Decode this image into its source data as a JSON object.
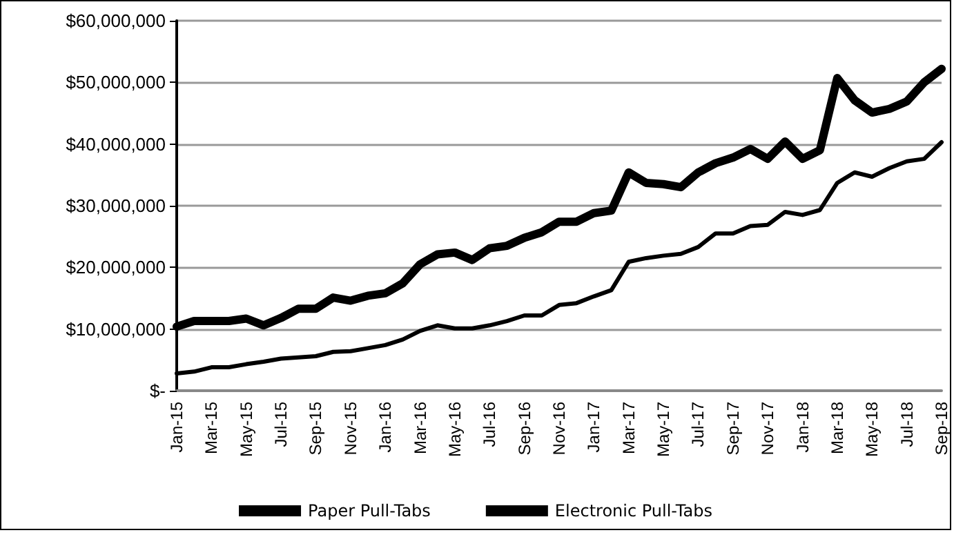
{
  "chart_data": {
    "type": "line",
    "categories": [
      "Jan-15",
      null,
      "Mar-15",
      null,
      "May-15",
      null,
      "Jul-15",
      null,
      "Sep-15",
      null,
      "Nov-15",
      null,
      "Jan-16",
      null,
      "Mar-16",
      null,
      "May-16",
      null,
      "Jul-16",
      null,
      "Sep-16",
      null,
      "Nov-16",
      null,
      "Jan-17",
      null,
      "Mar-17",
      null,
      "May-17",
      null,
      "Jul-17",
      null,
      "Sep-17",
      null,
      "Nov-17",
      null,
      "Jan-18",
      null,
      "Mar-18",
      null,
      "May-18",
      null,
      "Jul-18",
      null,
      "Sep-18"
    ],
    "series": [
      {
        "name": "Paper Pull-Tabs",
        "color": "#000000",
        "values": [
          10400000,
          11300000,
          11300000,
          11300000,
          11700000,
          10600000,
          11800000,
          13300000,
          13300000,
          15100000,
          14600000,
          15400000,
          15800000,
          17400000,
          20500000,
          22100000,
          22400000,
          21200000,
          23100000,
          23500000,
          24800000,
          25700000,
          27400000,
          27400000,
          28800000,
          29200000,
          35400000,
          33700000,
          33500000,
          33000000,
          35400000,
          36900000,
          37800000,
          39200000,
          37600000,
          40400000,
          37600000,
          39000000,
          50700000,
          47100000,
          45100000,
          45700000,
          46900000,
          50000000,
          52200000
        ]
      },
      {
        "name": "Electronic Pull-Tabs",
        "color": "#000000",
        "values": [
          2800000,
          3100000,
          3800000,
          3800000,
          4300000,
          4700000,
          5200000,
          5400000,
          5600000,
          6300000,
          6400000,
          6900000,
          7400000,
          8300000,
          9700000,
          10600000,
          10100000,
          10100000,
          10600000,
          11300000,
          12200000,
          12200000,
          13900000,
          14200000,
          15300000,
          16300000,
          20900000,
          21500000,
          21900000,
          22200000,
          23300000,
          25500000,
          25500000,
          26700000,
          26900000,
          29000000,
          28500000,
          29300000,
          33700000,
          35400000,
          34700000,
          36100000,
          37200000,
          37600000,
          40300000
        ]
      }
    ],
    "ylim": [
      0,
      60000000
    ],
    "yticks": [
      {
        "value": 0,
        "label": "$-"
      },
      {
        "value": 10000000,
        "label": "$10,000,000"
      },
      {
        "value": 20000000,
        "label": "$20,000,000"
      },
      {
        "value": 30000000,
        "label": "$30,000,000"
      },
      {
        "value": 40000000,
        "label": "$40,000,000"
      },
      {
        "value": 50000000,
        "label": "$50,000,000"
      },
      {
        "value": 60000000,
        "label": "$60,000,000"
      }
    ],
    "grid": "y",
    "legend": "bottom",
    "marker": "none",
    "line_style": "solid"
  }
}
